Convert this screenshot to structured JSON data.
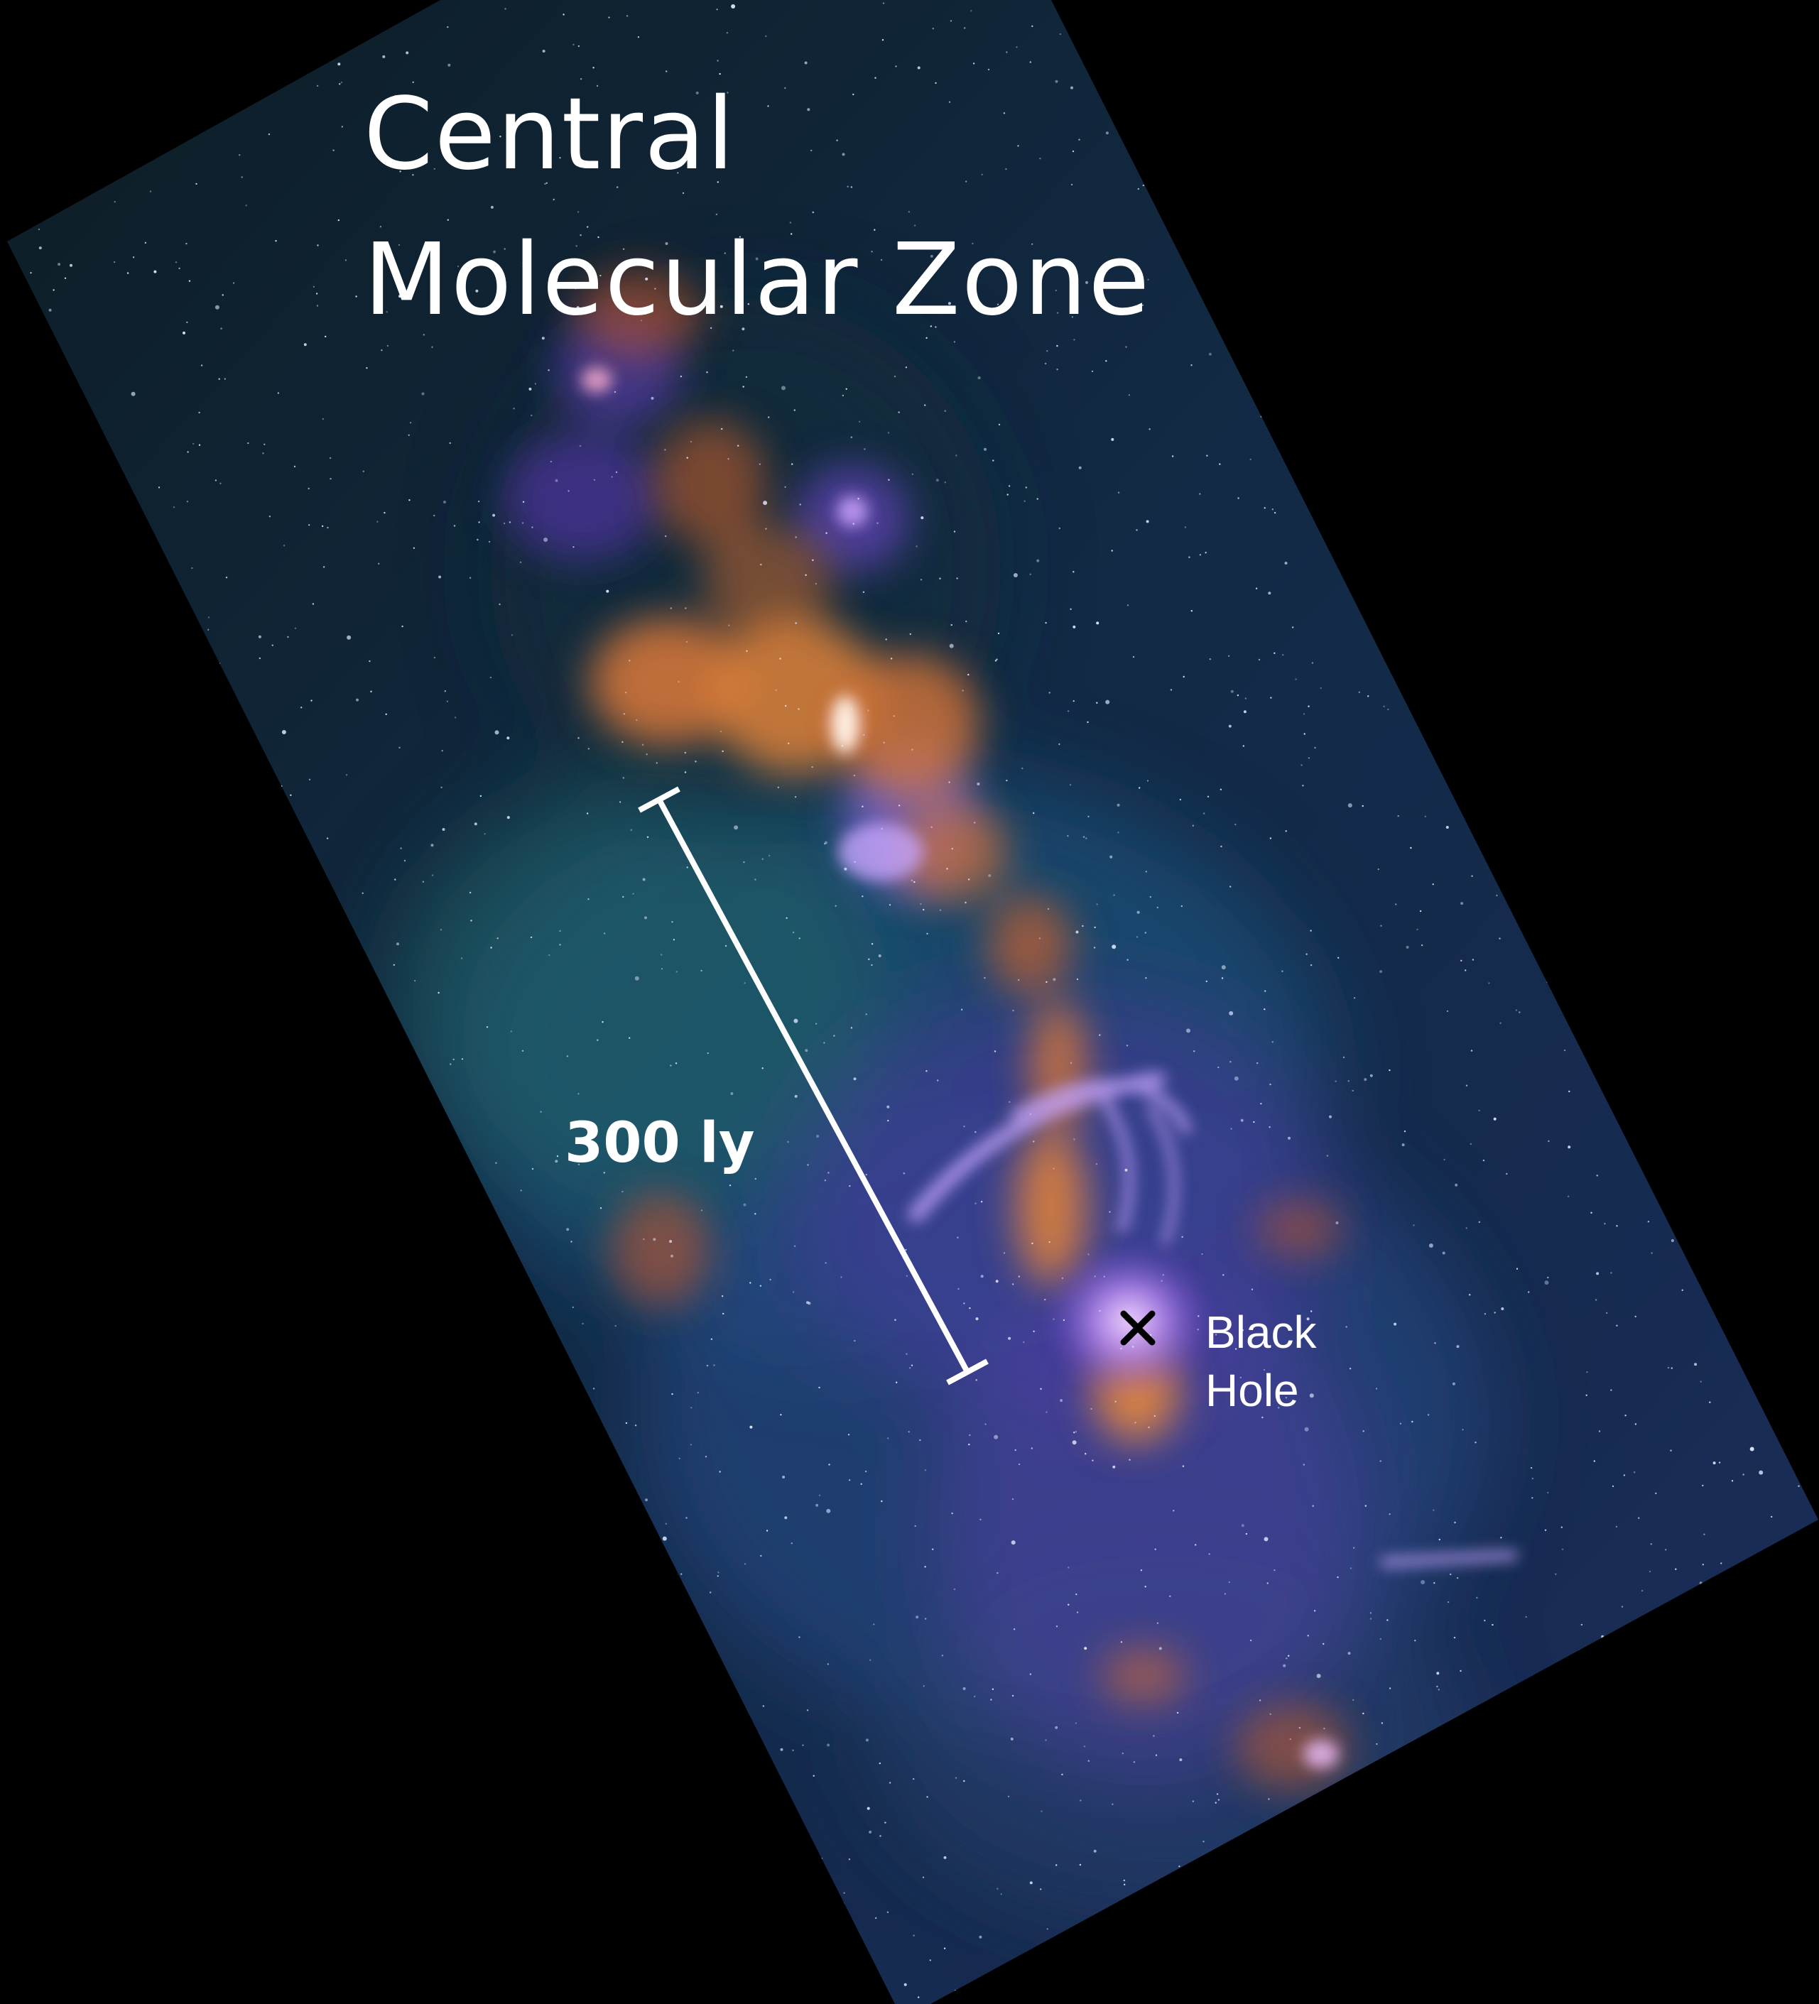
{
  "image": {
    "title_line_1": "Central",
    "title_line_2": "Molecular Zone",
    "scale_label": "300 ly",
    "marker_label_line_1": "Black",
    "marker_label_line_2": "Hole",
    "marker_symbol": "cross-icon",
    "colors": {
      "background": "#000000",
      "nebula_blue": "#1d3a6e",
      "nebula_teal": "#1f6a6a",
      "nebula_purple": "#7a4fd6",
      "nebula_orange": "#e07a32",
      "text": "#ffffff",
      "marker": "#000000"
    }
  }
}
